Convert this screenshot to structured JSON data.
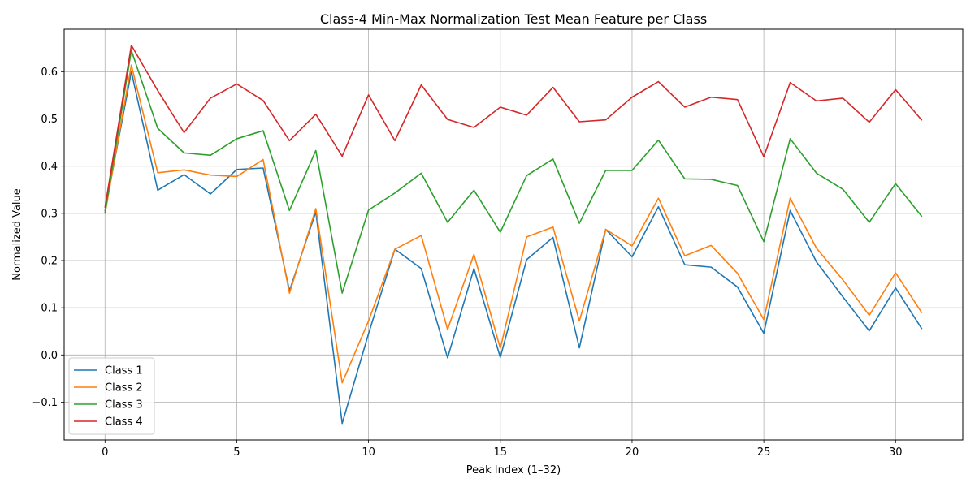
{
  "chart_data": {
    "type": "line",
    "title": "Class-4 Min-Max Normalization Test Mean Feature per Class",
    "xlabel": "Peak Index (1–32)",
    "ylabel": "Normalized Value",
    "xlim": [
      -1.55,
      32.55
    ],
    "ylim": [
      -0.18,
      0.69
    ],
    "xticks": [
      0,
      5,
      10,
      15,
      20,
      25,
      30
    ],
    "xtick_labels": [
      "0",
      "5",
      "10",
      "15",
      "20",
      "25",
      "30"
    ],
    "yticks": [
      -0.1,
      0.0,
      0.1,
      0.2,
      0.3,
      0.4,
      0.5,
      0.6
    ],
    "ytick_labels": [
      "−0.1",
      "0.0",
      "0.1",
      "0.2",
      "0.3",
      "0.4",
      "0.5",
      "0.6"
    ],
    "grid": true,
    "legend_position": "bottom-left",
    "x": [
      0,
      1,
      2,
      3,
      4,
      5,
      6,
      7,
      8,
      9,
      10,
      11,
      12,
      13,
      14,
      15,
      16,
      17,
      18,
      19,
      20,
      21,
      22,
      23,
      24,
      25,
      26,
      27,
      28,
      29,
      30,
      31
    ],
    "series": [
      {
        "name": "Class 1",
        "color": "#1f77b4",
        "values": [
          0.305,
          0.6,
          0.349,
          0.382,
          0.341,
          0.393,
          0.396,
          0.136,
          0.303,
          -0.145,
          0.045,
          0.224,
          0.183,
          -0.006,
          0.183,
          -0.005,
          0.202,
          0.249,
          0.015,
          0.266,
          0.208,
          0.314,
          0.191,
          0.186,
          0.144,
          0.046,
          0.306,
          0.197,
          0.123,
          0.051,
          0.142,
          0.055
        ]
      },
      {
        "name": "Class 2",
        "color": "#ff7f0e",
        "values": [
          0.299,
          0.614,
          0.386,
          0.392,
          0.381,
          0.378,
          0.414,
          0.131,
          0.31,
          -0.059,
          0.072,
          0.224,
          0.253,
          0.054,
          0.213,
          0.014,
          0.25,
          0.271,
          0.072,
          0.266,
          0.231,
          0.332,
          0.21,
          0.232,
          0.173,
          0.075,
          0.332,
          0.226,
          0.159,
          0.084,
          0.174,
          0.089
        ]
      },
      {
        "name": "Class 3",
        "color": "#2ca02c",
        "values": [
          0.301,
          0.645,
          0.48,
          0.428,
          0.423,
          0.458,
          0.475,
          0.306,
          0.433,
          0.131,
          0.307,
          0.343,
          0.385,
          0.281,
          0.349,
          0.26,
          0.38,
          0.415,
          0.279,
          0.391,
          0.391,
          0.455,
          0.373,
          0.372,
          0.359,
          0.24,
          0.458,
          0.385,
          0.351,
          0.281,
          0.363,
          0.293
        ]
      },
      {
        "name": "Class 4",
        "color": "#d62728",
        "values": [
          0.312,
          0.656,
          0.56,
          0.471,
          0.544,
          0.574,
          0.539,
          0.454,
          0.51,
          0.421,
          0.551,
          0.454,
          0.572,
          0.499,
          0.482,
          0.525,
          0.508,
          0.567,
          0.494,
          0.498,
          0.546,
          0.579,
          0.525,
          0.546,
          0.541,
          0.42,
          0.577,
          0.538,
          0.544,
          0.493,
          0.562,
          0.497
        ]
      }
    ]
  }
}
